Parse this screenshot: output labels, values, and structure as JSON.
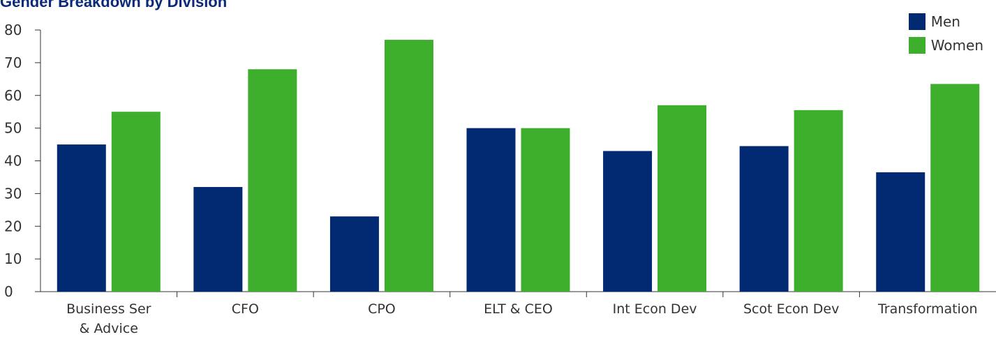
{
  "chart_data": {
    "type": "bar",
    "title": "Gender Breakdown by Division",
    "xlabel": "",
    "ylabel": "",
    "ylim": [
      0,
      80
    ],
    "yticks": [
      0,
      10,
      20,
      30,
      40,
      50,
      60,
      70,
      80
    ],
    "grid": false,
    "legend_position": "top-right",
    "categories": [
      [
        "Business Ser",
        "& Advice"
      ],
      [
        "CFO"
      ],
      [
        "CPO"
      ],
      [
        "ELT & CEO"
      ],
      [
        "Int Econ Dev"
      ],
      [
        "Scot Econ Dev"
      ],
      [
        "Transformation"
      ]
    ],
    "series": [
      {
        "name": "Men",
        "color": "#022a73",
        "values": [
          45,
          32,
          23,
          50,
          43,
          44.5,
          36.5
        ]
      },
      {
        "name": "Women",
        "color": "#3daf2c",
        "values": [
          55,
          68,
          77,
          50,
          57,
          55.5,
          63.5
        ]
      }
    ]
  },
  "colors": {
    "title": "#0b2a78",
    "axis": "#333333",
    "tick_text": "#333333"
  }
}
